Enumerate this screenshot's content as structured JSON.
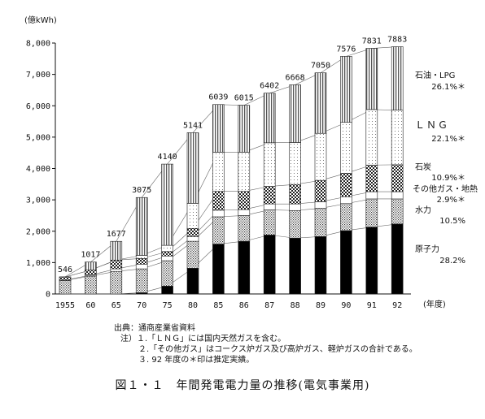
{
  "chart_data": {
    "type": "bar",
    "stacked": true,
    "title": "図１・１　年間発電電力量の推移(電気事業用)",
    "ylabel": "(億kWh)",
    "xlabel": "(年度)",
    "ylim": [
      0,
      8000
    ],
    "yticks": [
      "0",
      "1,000",
      "2,000",
      "3,000",
      "4,000",
      "5,000",
      "6,000",
      "7,000",
      "8,000"
    ],
    "categories": [
      "1955",
      "60",
      "65",
      "70",
      "75",
      "80",
      "85",
      "86",
      "87",
      "88",
      "89",
      "90",
      "91",
      "92"
    ],
    "totals": [
      "546",
      "1017",
      "1677",
      "3075",
      "4140",
      "5141",
      "6039",
      "6015",
      "6402",
      "6668",
      "7050",
      "7576",
      "7831",
      "7883"
    ],
    "series": [
      {
        "name": "原子力",
        "share_label": "28.2%",
        "color": "#000000",
        "pattern": "solid",
        "values": [
          0,
          0,
          0,
          40,
          250,
          820,
          1590,
          1680,
          1880,
          1780,
          1830,
          2020,
          2130,
          2230
        ]
      },
      {
        "name": "水力",
        "share_label": "10.5%",
        "color": "#9a9a9a",
        "pattern": "fine-dots",
        "values": [
          430,
          570,
          720,
          760,
          810,
          860,
          870,
          820,
          800,
          880,
          900,
          860,
          900,
          800
        ]
      },
      {
        "name": "その他ガス・地熱",
        "share_label": "2.9%＊",
        "color": "#ffffff",
        "pattern": "white",
        "values": [
          10,
          30,
          80,
          150,
          150,
          150,
          210,
          190,
          190,
          210,
          210,
          220,
          230,
          230
        ]
      },
      {
        "name": "石炭",
        "share_label": "10.9%＊",
        "color": "#3a3a3a",
        "pattern": "checker",
        "values": [
          100,
          160,
          280,
          180,
          140,
          260,
          600,
          580,
          560,
          620,
          680,
          750,
          850,
          860
        ]
      },
      {
        "name": "ＬＮＧ",
        "share_label": "22.1%＊",
        "color": "#d8d8d8",
        "pattern": "light-dots",
        "values": [
          0,
          0,
          0,
          100,
          200,
          800,
          1250,
          1250,
          1390,
          1340,
          1500,
          1620,
          1770,
          1740
        ]
      },
      {
        "name": "石油・LPG",
        "share_label": "26.1%＊",
        "color": "#7a7a7a",
        "pattern": "vertical-hatch",
        "values": [
          6,
          257,
          597,
          1845,
          2590,
          2251,
          1519,
          1495,
          1582,
          1838,
          1930,
          2106,
          1951,
          2023
        ]
      }
    ]
  },
  "legend": [
    {
      "line1": "石油・LPG",
      "line2": "26.1%＊"
    },
    {
      "line1": "ＬＮＧ",
      "line2": "22.1%＊"
    },
    {
      "line1": "石炭",
      "line2": "10.9%＊"
    },
    {
      "line1": "その他ガス・地熱",
      "line2": "2.9%＊"
    },
    {
      "line1": "水力",
      "line2": "10.5%"
    },
    {
      "line1": "原子力",
      "line2": "28.2%"
    }
  ],
  "notes": {
    "source": "出典：通商産業省資料",
    "note1": "注）１.「ＬＮＧ」には国内天然ガスを含む。",
    "note2": "２.「その他ガス」はコークス炉ガス及び高炉ガス、軽炉ガスの合計である。",
    "note3": "３. 92 年度の＊印は推定実績。"
  }
}
